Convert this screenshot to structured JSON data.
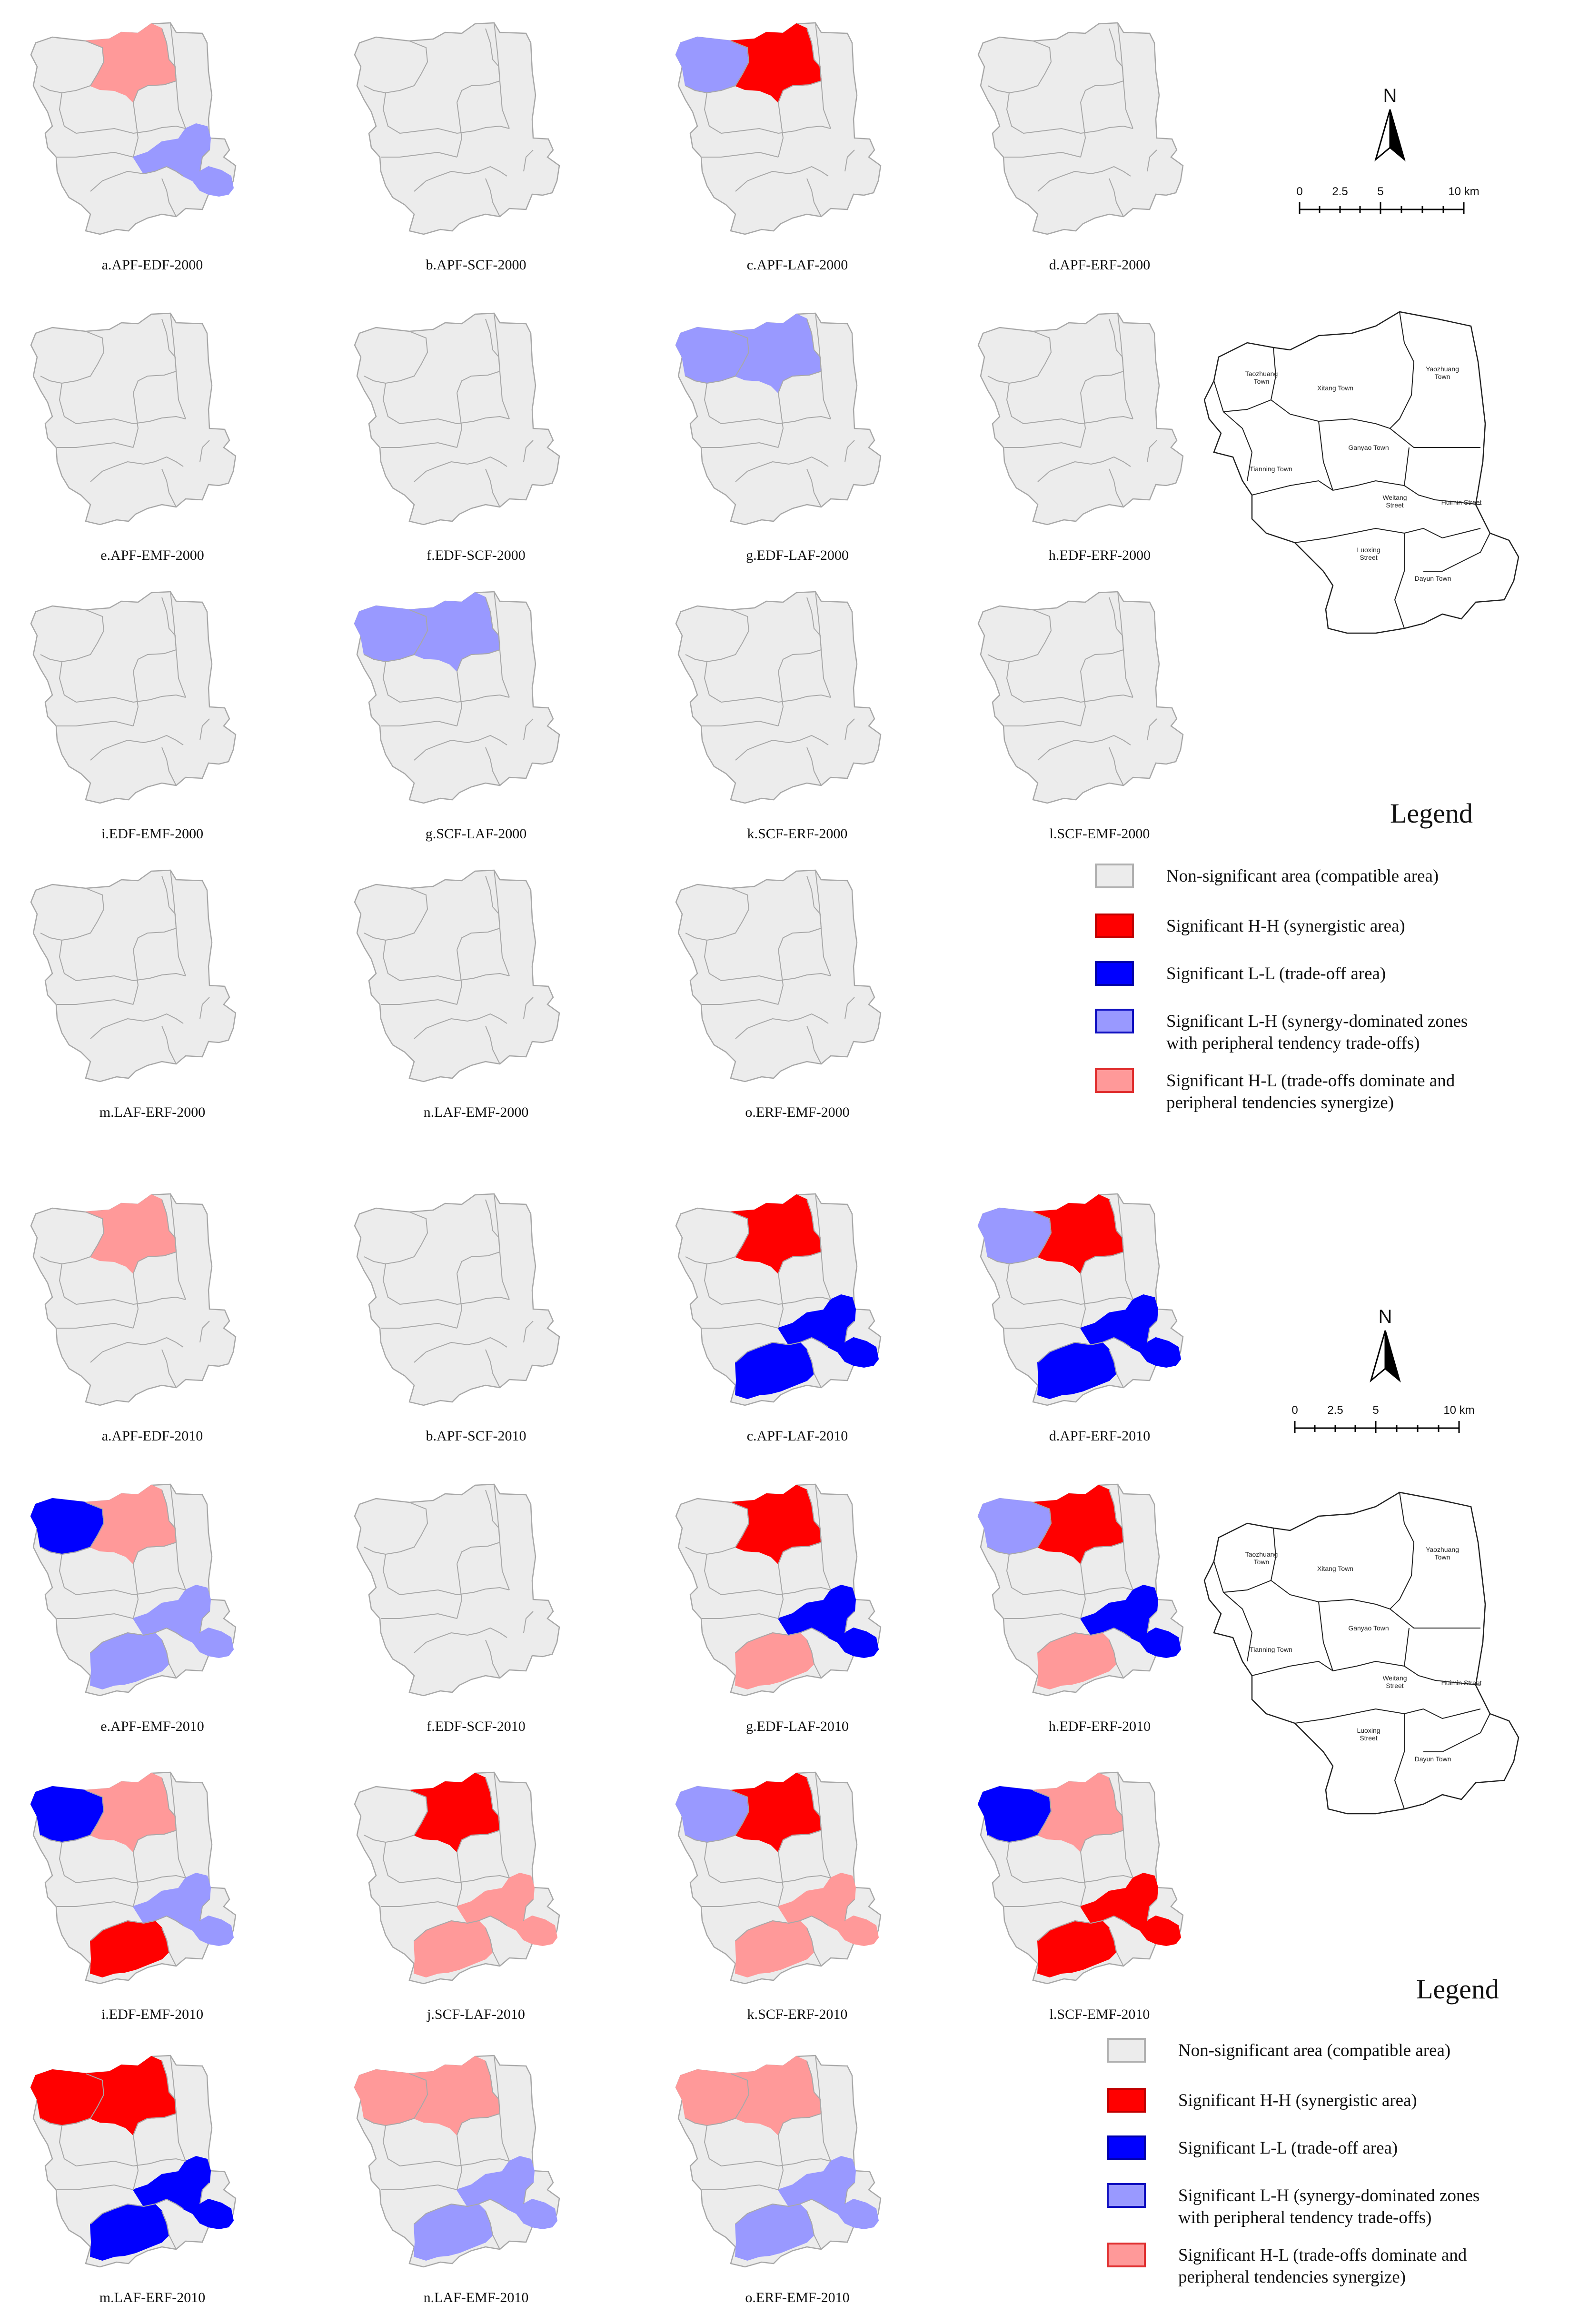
{
  "colors": {
    "non_significant": "#ececec",
    "hh": "#ff0000",
    "ll": "#0000ff",
    "lh": "#9999ff",
    "hl": "#ff9999",
    "outline": "#a8a8a8"
  },
  "legend": {
    "title": "Legend",
    "items": [
      {
        "key": "non_significant",
        "label": "Non-significant area (compatible area)"
      },
      {
        "key": "hh",
        "label": "Significant H-H (synergistic area)"
      },
      {
        "key": "ll",
        "label": "Significant L-L (trade-off area)"
      },
      {
        "key": "lh",
        "label": "Significant L-H (synergy-dominated zones",
        "label2": "with peripheral tendency trade-offs)"
      },
      {
        "key": "hl",
        "label": "Significant H-L (trade-offs dominate and",
        "label2": "peripheral tendencies synergize)"
      }
    ]
  },
  "north_label": "N",
  "scale_labels": [
    "0",
    "2.5",
    "5",
    "10 km"
  ],
  "towns": [
    "Taozhuang Town",
    "Xitang Town",
    "Yaozhuang Town",
    "Tianning Town",
    "Ganyao Town",
    "Weitang Street",
    "Huimin Street",
    "Luoxing Street",
    "Dayun Town"
  ],
  "panels_2000": [
    {
      "caption": "a.APF-EDF-2000",
      "regions": {
        "northcenter": "hl",
        "east": "lh"
      }
    },
    {
      "caption": "b.APF-SCF-2000",
      "regions": {}
    },
    {
      "caption": "c.APF-LAF-2000",
      "regions": {
        "northwest": "lh",
        "northcenter": "hh"
      }
    },
    {
      "caption": "d.APF-ERF-2000",
      "regions": {}
    },
    {
      "caption": "e.APF-EMF-2000",
      "regions": {}
    },
    {
      "caption": "f.EDF-SCF-2000",
      "regions": {}
    },
    {
      "caption": "g.EDF-LAF-2000",
      "regions": {
        "northwest": "lh",
        "northcenter": "lh"
      }
    },
    {
      "caption": "h.EDF-ERF-2000",
      "regions": {}
    },
    {
      "caption": "i.EDF-EMF-2000",
      "regions": {}
    },
    {
      "caption": "g.SCF-LAF-2000",
      "regions": {
        "northwest": "lh",
        "northcenter": "lh"
      }
    },
    {
      "caption": "k.SCF-ERF-2000",
      "regions": {}
    },
    {
      "caption": "l.SCF-EMF-2000",
      "regions": {}
    },
    {
      "caption": "m.LAF-ERF-2000",
      "regions": {}
    },
    {
      "caption": "n.LAF-EMF-2000",
      "regions": {}
    },
    {
      "caption": "o.ERF-EMF-2000",
      "regions": {}
    }
  ],
  "panels_2010": [
    {
      "caption": "a.APF-EDF-2010",
      "regions": {
        "northcenter": "hl"
      }
    },
    {
      "caption": "b.APF-SCF-2010",
      "regions": {}
    },
    {
      "caption": "c.APF-LAF-2010",
      "regions": {
        "northcenter": "hh",
        "east": "ll",
        "south": "ll"
      }
    },
    {
      "caption": "d.APF-ERF-2010",
      "regions": {
        "northwest": "lh",
        "northcenter": "hh",
        "east": "ll",
        "south": "ll"
      }
    },
    {
      "caption": "e.APF-EMF-2010",
      "regions": {
        "northwest": "ll",
        "northcenter": "hl",
        "east": "lh",
        "south": "lh"
      }
    },
    {
      "caption": "f.EDF-SCF-2010",
      "regions": {}
    },
    {
      "caption": "g.EDF-LAF-2010",
      "regions": {
        "northcenter": "hh",
        "east": "ll",
        "south": "hl"
      }
    },
    {
      "caption": "h.EDF-ERF-2010",
      "regions": {
        "northwest": "lh",
        "northcenter": "hh",
        "east": "ll",
        "south": "hl"
      }
    },
    {
      "caption": "i.EDF-EMF-2010",
      "regions": {
        "northwest": "ll",
        "northcenter": "hl",
        "east": "lh",
        "south": "hh"
      }
    },
    {
      "caption": "j.SCF-LAF-2010",
      "regions": {
        "northcenter": "hh",
        "east": "hl",
        "south": "hl"
      }
    },
    {
      "caption": "k.SCF-ERF-2010",
      "regions": {
        "northwest": "lh",
        "northcenter": "hh",
        "east": "hl",
        "south": "hl"
      }
    },
    {
      "caption": "l.SCF-EMF-2010",
      "regions": {
        "northwest": "ll",
        "northcenter": "hl",
        "east": "hh",
        "south": "hh"
      }
    },
    {
      "caption": "m.LAF-ERF-2010",
      "regions": {
        "northwest": "hh",
        "northcenter": "hh",
        "east": "ll",
        "south": "ll"
      }
    },
    {
      "caption": "n.LAF-EMF-2010",
      "regions": {
        "northwest": "hl",
        "northcenter": "hl",
        "east": "lh",
        "south": "lh"
      }
    },
    {
      "caption": "o.ERF-EMF-2010",
      "regions": {
        "northwest": "hl",
        "northcenter": "hl",
        "east": "lh",
        "south": "lh"
      }
    }
  ]
}
